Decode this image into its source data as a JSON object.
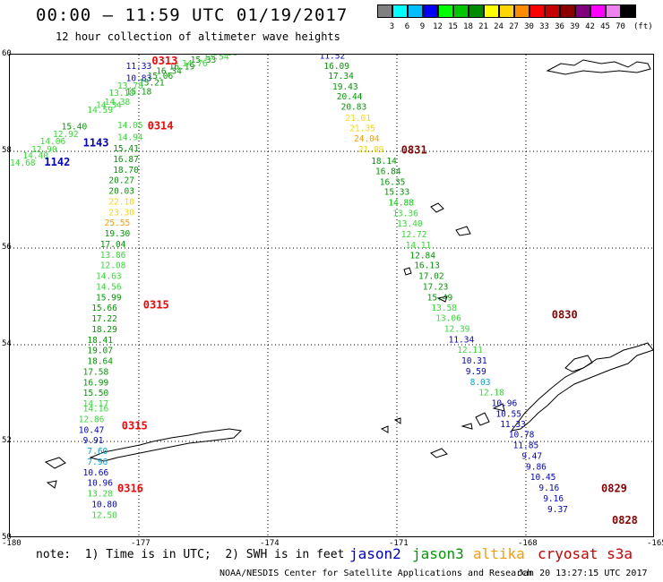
{
  "header": {
    "title": "00:00 — 11:59 UTC 01/19/2017",
    "subtitle": "12 hour collection of altimeter wave heights"
  },
  "color_scale": {
    "colors": [
      "#808080",
      "#00ffff",
      "#00bfff",
      "#0000ff",
      "#00ff00",
      "#00c800",
      "#008c00",
      "#ffff00",
      "#ffd700",
      "#ff8c00",
      "#ff0000",
      "#c80000",
      "#8b0000",
      "#800080",
      "#ff00ff",
      "#ee82ee",
      "#000000"
    ],
    "labels": [
      "3",
      "6",
      "9",
      "12",
      "15",
      "18",
      "21",
      "24",
      "27",
      "30",
      "33",
      "36",
      "39",
      "42",
      "45",
      "70"
    ],
    "unit": "(ft)"
  },
  "axes": {
    "lat_labels": [
      "60",
      "58",
      "56",
      "54",
      "52",
      "50"
    ],
    "lon_labels": [
      "-180",
      "-177",
      "-174",
      "-171",
      "-168",
      "-165"
    ]
  },
  "footer": {
    "note": "note:  1) Time is in UTC;  2) SWH is in feet",
    "legend": [
      {
        "name": "jason2",
        "color": "#0000cc"
      },
      {
        "name": "jason3",
        "color": "#009900"
      },
      {
        "name": "altika",
        "color": "#ff9900"
      },
      {
        "name": "cryosat s3a",
        "color": "#cc0000"
      }
    ],
    "credit": "NOAA/NESDIS Center for Satellite Applications and Research",
    "timestamp": "Jan 20 13:27:15 UTC 2017"
  },
  "chart_data": {
    "type": "map",
    "extent": {
      "lon": [
        -180,
        -165
      ],
      "lat": [
        50,
        60
      ]
    },
    "grid": true,
    "time_labels": [
      {
        "text": "0313",
        "lon": -176.7,
        "lat": 59.8,
        "color": "#ff0000"
      },
      {
        "text": "0314",
        "lon": -176.8,
        "lat": 58.45,
        "color": "#ff0000"
      },
      {
        "text": "1143",
        "lon": -178.3,
        "lat": 58.1,
        "color": "#0000cc"
      },
      {
        "text": "1142",
        "lon": -179.2,
        "lat": 57.7,
        "color": "#0000cc"
      },
      {
        "text": "0315",
        "lon": -176.9,
        "lat": 54.75,
        "color": "#ff0000"
      },
      {
        "text": "0315",
        "lon": -177.4,
        "lat": 52.25,
        "color": "#ff0000"
      },
      {
        "text": "0316",
        "lon": -177.5,
        "lat": 50.95,
        "color": "#ff0000"
      },
      {
        "text": "0831",
        "lon": -170.9,
        "lat": 57.95,
        "color": "#8b0000"
      },
      {
        "text": "0830",
        "lon": -167.4,
        "lat": 54.55,
        "color": "#8b0000"
      },
      {
        "text": "0829",
        "lon": -166.25,
        "lat": 50.95,
        "color": "#8b0000"
      },
      {
        "text": "0828",
        "lon": -166.0,
        "lat": 50.3,
        "color": "#8b0000"
      }
    ],
    "tracks": [
      {
        "name": "track_east",
        "points": [
          {
            "v": "11.52",
            "lon": -172.8,
            "lat": 59.92,
            "color": "#0000cc"
          },
          {
            "v": "16.09",
            "lon": -172.7,
            "lat": 59.7,
            "color": "#009900"
          },
          {
            "v": "17.34",
            "lon": -172.6,
            "lat": 59.5,
            "color": "#009900"
          },
          {
            "v": "19.43",
            "lon": -172.5,
            "lat": 59.28,
            "color": "#009900"
          },
          {
            "v": "20.44",
            "lon": -172.4,
            "lat": 59.07,
            "color": "#009900"
          },
          {
            "v": "20.83",
            "lon": -172.3,
            "lat": 58.86,
            "color": "#009900"
          },
          {
            "v": "21.01",
            "lon": -172.2,
            "lat": 58.63,
            "color": "#ffd700"
          },
          {
            "v": "21.35",
            "lon": -172.1,
            "lat": 58.42,
            "color": "#ffd700"
          },
          {
            "v": "24.04",
            "lon": -172.0,
            "lat": 58.2,
            "color": "#ff9900"
          },
          {
            "v": "21.09",
            "lon": -171.9,
            "lat": 57.98,
            "color": "#ffd700"
          },
          {
            "v": "18.14",
            "lon": -171.6,
            "lat": 57.74,
            "color": "#009900"
          },
          {
            "v": "16.84",
            "lon": -171.5,
            "lat": 57.53,
            "color": "#009900"
          },
          {
            "v": "16.35",
            "lon": -171.4,
            "lat": 57.31,
            "color": "#009900"
          },
          {
            "v": "15.33",
            "lon": -171.3,
            "lat": 57.1,
            "color": "#009900"
          },
          {
            "v": "14.88",
            "lon": -171.2,
            "lat": 56.88,
            "color": "#00cc00"
          },
          {
            "v": "13.36",
            "lon": -171.1,
            "lat": 56.66,
            "color": "#33dd33"
          },
          {
            "v": "13.40",
            "lon": -171.0,
            "lat": 56.44,
            "color": "#33dd33"
          },
          {
            "v": "12.72",
            "lon": -170.9,
            "lat": 56.22,
            "color": "#33dd33"
          },
          {
            "v": "14.11",
            "lon": -170.8,
            "lat": 56.0,
            "color": "#33dd33"
          },
          {
            "v": "12.84",
            "lon": -170.7,
            "lat": 55.79,
            "color": "#009900"
          },
          {
            "v": "16.13",
            "lon": -170.6,
            "lat": 55.58,
            "color": "#009900"
          },
          {
            "v": "17.02",
            "lon": -170.5,
            "lat": 55.36,
            "color": "#009900"
          },
          {
            "v": "17.23",
            "lon": -170.4,
            "lat": 55.14,
            "color": "#009900"
          },
          {
            "v": "15.49",
            "lon": -170.3,
            "lat": 54.92,
            "color": "#009900"
          },
          {
            "v": "13.58",
            "lon": -170.2,
            "lat": 54.7,
            "color": "#33dd33"
          },
          {
            "v": "13.06",
            "lon": -170.1,
            "lat": 54.49,
            "color": "#33dd33"
          },
          {
            "v": "12.39",
            "lon": -169.9,
            "lat": 54.27,
            "color": "#33dd33"
          },
          {
            "v": "11.34",
            "lon": -169.8,
            "lat": 54.05,
            "color": "#0000cc"
          },
          {
            "v": "12.11",
            "lon": -169.6,
            "lat": 53.83,
            "color": "#33dd33"
          },
          {
            "v": "10.31",
            "lon": -169.5,
            "lat": 53.61,
            "color": "#0000cc"
          },
          {
            "v": "9.59",
            "lon": -169.4,
            "lat": 53.39,
            "color": "#0000cc"
          },
          {
            "v": "8.03",
            "lon": -169.3,
            "lat": 53.17,
            "color": "#00a0e0"
          },
          {
            "v": "12.18",
            "lon": -169.1,
            "lat": 52.95,
            "color": "#33dd33"
          },
          {
            "v": "10.96",
            "lon": -168.8,
            "lat": 52.73,
            "color": "#0000cc"
          },
          {
            "v": "10.55",
            "lon": -168.7,
            "lat": 52.51,
            "color": "#0000cc"
          },
          {
            "v": "11.33",
            "lon": -168.6,
            "lat": 52.3,
            "color": "#0000cc"
          },
          {
            "v": "10.78",
            "lon": -168.4,
            "lat": 52.08,
            "color": "#0000cc"
          },
          {
            "v": "11.85",
            "lon": -168.3,
            "lat": 51.86,
            "color": "#0000cc"
          },
          {
            "v": "9.47",
            "lon": -168.1,
            "lat": 51.64,
            "color": "#0000cc"
          },
          {
            "v": "9.86",
            "lon": -168.0,
            "lat": 51.42,
            "color": "#0000cc"
          },
          {
            "v": "10.45",
            "lon": -167.9,
            "lat": 51.2,
            "color": "#0000cc"
          },
          {
            "v": "9.16",
            "lon": -167.7,
            "lat": 50.98,
            "color": "#0000cc"
          },
          {
            "v": "9.16",
            "lon": -167.6,
            "lat": 50.76,
            "color": "#0000cc"
          },
          {
            "v": "9.37",
            "lon": -167.5,
            "lat": 50.54,
            "color": "#0000cc"
          }
        ]
      },
      {
        "name": "track_west_vertical",
        "points": [
          {
            "v": "14.05",
            "lon": -177.5,
            "lat": 58.48,
            "color": "#33dd33"
          },
          {
            "v": "14.94",
            "lon": -177.5,
            "lat": 58.23,
            "color": "#33dd33"
          },
          {
            "v": "15.41",
            "lon": -177.6,
            "lat": 58.0,
            "color": "#009900"
          },
          {
            "v": "16.87",
            "lon": -177.6,
            "lat": 57.78,
            "color": "#009900"
          },
          {
            "v": "18.70",
            "lon": -177.6,
            "lat": 57.56,
            "color": "#009900"
          },
          {
            "v": "20.27",
            "lon": -177.7,
            "lat": 57.34,
            "color": "#009900"
          },
          {
            "v": "20.03",
            "lon": -177.7,
            "lat": 57.12,
            "color": "#009900"
          },
          {
            "v": "22.10",
            "lon": -177.7,
            "lat": 56.9,
            "color": "#ffd700"
          },
          {
            "v": "23.30",
            "lon": -177.7,
            "lat": 56.68,
            "color": "#ffd700"
          },
          {
            "v": "25.55",
            "lon": -177.8,
            "lat": 56.46,
            "color": "#ff9900"
          },
          {
            "v": "19.30",
            "lon": -177.8,
            "lat": 56.24,
            "color": "#009900"
          },
          {
            "v": "17.04",
            "lon": -177.9,
            "lat": 56.02,
            "color": "#009900"
          },
          {
            "v": "13.86",
            "lon": -177.9,
            "lat": 55.8,
            "color": "#33dd33"
          },
          {
            "v": "12.08",
            "lon": -177.9,
            "lat": 55.58,
            "color": "#33dd33"
          },
          {
            "v": "14.63",
            "lon": -178.0,
            "lat": 55.36,
            "color": "#33dd33"
          },
          {
            "v": "14.56",
            "lon": -178.0,
            "lat": 55.14,
            "color": "#33dd33"
          },
          {
            "v": "15.99",
            "lon": -178.0,
            "lat": 54.92,
            "color": "#009900"
          },
          {
            "v": "15.66",
            "lon": -178.1,
            "lat": 54.7,
            "color": "#009900"
          },
          {
            "v": "17.22",
            "lon": -178.1,
            "lat": 54.48,
            "color": "#009900"
          },
          {
            "v": "18.29",
            "lon": -178.1,
            "lat": 54.26,
            "color": "#009900"
          },
          {
            "v": "18.41",
            "lon": -178.2,
            "lat": 54.04,
            "color": "#009900"
          },
          {
            "v": "19.07",
            "lon": -178.2,
            "lat": 53.82,
            "color": "#009900"
          },
          {
            "v": "18.64",
            "lon": -178.2,
            "lat": 53.6,
            "color": "#009900"
          },
          {
            "v": "17.58",
            "lon": -178.3,
            "lat": 53.38,
            "color": "#009900"
          },
          {
            "v": "16.99",
            "lon": -178.3,
            "lat": 53.16,
            "color": "#009900"
          },
          {
            "v": "15.50",
            "lon": -178.3,
            "lat": 52.94,
            "color": "#009900"
          },
          {
            "v": "14.17",
            "lon": -178.3,
            "lat": 52.72,
            "color": "#33dd33"
          },
          {
            "v": "14.16",
            "lon": -178.3,
            "lat": 52.62,
            "color": "#33dd33"
          },
          {
            "v": "12.86",
            "lon": -178.4,
            "lat": 52.4,
            "color": "#33dd33"
          },
          {
            "v": "10.47",
            "lon": -178.4,
            "lat": 52.18,
            "color": "#0000cc"
          },
          {
            "v": "9.91",
            "lon": -178.3,
            "lat": 51.96,
            "color": "#0000cc"
          },
          {
            "v": "7.60",
            "lon": -178.2,
            "lat": 51.74,
            "color": "#00a0e0"
          },
          {
            "v": "7.96",
            "lon": -178.2,
            "lat": 51.52,
            "color": "#00a0e0"
          },
          {
            "v": "10.66",
            "lon": -178.3,
            "lat": 51.3,
            "color": "#0000cc"
          },
          {
            "v": "10.96",
            "lon": -178.2,
            "lat": 51.08,
            "color": "#0000cc"
          },
          {
            "v": "13.28",
            "lon": -178.2,
            "lat": 50.86,
            "color": "#33dd33"
          },
          {
            "v": "10.80",
            "lon": -178.1,
            "lat": 50.64,
            "color": "#0000cc"
          },
          {
            "v": "12.50",
            "lon": -178.1,
            "lat": 50.42,
            "color": "#33dd33"
          }
        ]
      },
      {
        "name": "track_west_diagonal",
        "points": [
          {
            "v": "14.38",
            "lon": -175.3,
            "lat": 59.98,
            "color": "#33dd33"
          },
          {
            "v": "13.54",
            "lon": -175.5,
            "lat": 59.9,
            "color": "#33dd33"
          },
          {
            "v": "15.33",
            "lon": -175.8,
            "lat": 59.83,
            "color": "#009900"
          },
          {
            "v": "14.76",
            "lon": -176.0,
            "lat": 59.76,
            "color": "#33dd33"
          },
          {
            "v": "16.19",
            "lon": -176.3,
            "lat": 59.69,
            "color": "#009900"
          },
          {
            "v": "16.34",
            "lon": -176.6,
            "lat": 59.6,
            "color": "#009900"
          },
          {
            "v": "11.33",
            "lon": -177.3,
            "lat": 59.7,
            "color": "#0000cc"
          },
          {
            "v": "10.83",
            "lon": -177.3,
            "lat": 59.45,
            "color": "#0000cc"
          },
          {
            "v": "15.06",
            "lon": -176.8,
            "lat": 59.5,
            "color": "#009900"
          },
          {
            "v": "15.21",
            "lon": -177.0,
            "lat": 59.36,
            "color": "#009900"
          },
          {
            "v": "13.78",
            "lon": -177.5,
            "lat": 59.3,
            "color": "#33dd33"
          },
          {
            "v": "15.18",
            "lon": -177.3,
            "lat": 59.18,
            "color": "#009900"
          },
          {
            "v": "13.18",
            "lon": -177.7,
            "lat": 59.15,
            "color": "#33dd33"
          },
          {
            "v": "14.38",
            "lon": -177.8,
            "lat": 58.96,
            "color": "#33dd33"
          },
          {
            "v": "14.34",
            "lon": -178.0,
            "lat": 58.9,
            "color": "#33dd33"
          },
          {
            "v": "14.59",
            "lon": -178.2,
            "lat": 58.8,
            "color": "#33dd33"
          },
          {
            "v": "15.40",
            "lon": -178.8,
            "lat": 58.45,
            "color": "#009900"
          },
          {
            "v": "12.92",
            "lon": -179.0,
            "lat": 58.3,
            "color": "#33dd33"
          },
          {
            "v": "14.06",
            "lon": -179.3,
            "lat": 58.15,
            "color": "#33dd33"
          },
          {
            "v": "12.90",
            "lon": -179.5,
            "lat": 57.98,
            "color": "#33dd33"
          },
          {
            "v": "14.40",
            "lon": -179.7,
            "lat": 57.85,
            "color": "#33dd33"
          },
          {
            "v": "14.68",
            "lon": -180.0,
            "lat": 57.7,
            "color": "#33dd33"
          }
        ]
      }
    ]
  }
}
